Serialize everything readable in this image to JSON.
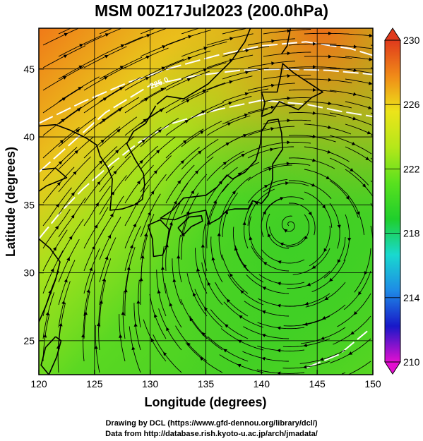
{
  "title": "MSM 00Z17Jul2023 (200.0hPa)",
  "map": {
    "lon_range": [
      120,
      150
    ],
    "lat_range": [
      22.5,
      48
    ],
    "xlabel": "Longitude (degrees)",
    "ylabel": "Latitude  (degrees)",
    "lon_ticks": [
      "120",
      "125",
      "130",
      "135",
      "140",
      "145",
      "150"
    ],
    "lat_ticks": [
      "25",
      "30",
      "35",
      "40",
      "45"
    ],
    "grid": true,
    "field": "temperature (shaded) with wind streamlines",
    "contour_label": "225.0",
    "cyclone_center": {
      "lon": 142.5,
      "lat": 33.7
    }
  },
  "colorbar": {
    "min": 210,
    "max": 230,
    "labels": [
      "230",
      "226",
      "222",
      "218",
      "214",
      "210"
    ],
    "colors": [
      "#e20fd0",
      "#1818c8",
      "#1e8be6",
      "#19d9cf",
      "#1fcf2c",
      "#59e11e",
      "#b5e71a",
      "#ece41a",
      "#f08a18",
      "#e03a1c"
    ]
  },
  "credits": {
    "line1": "Drawing by DCL (https://www.gfd-dennou.org/library/dcl/)",
    "line2": "Data from http://database.rish.kyoto-u.ac.jp/arch/jmadata/"
  }
}
